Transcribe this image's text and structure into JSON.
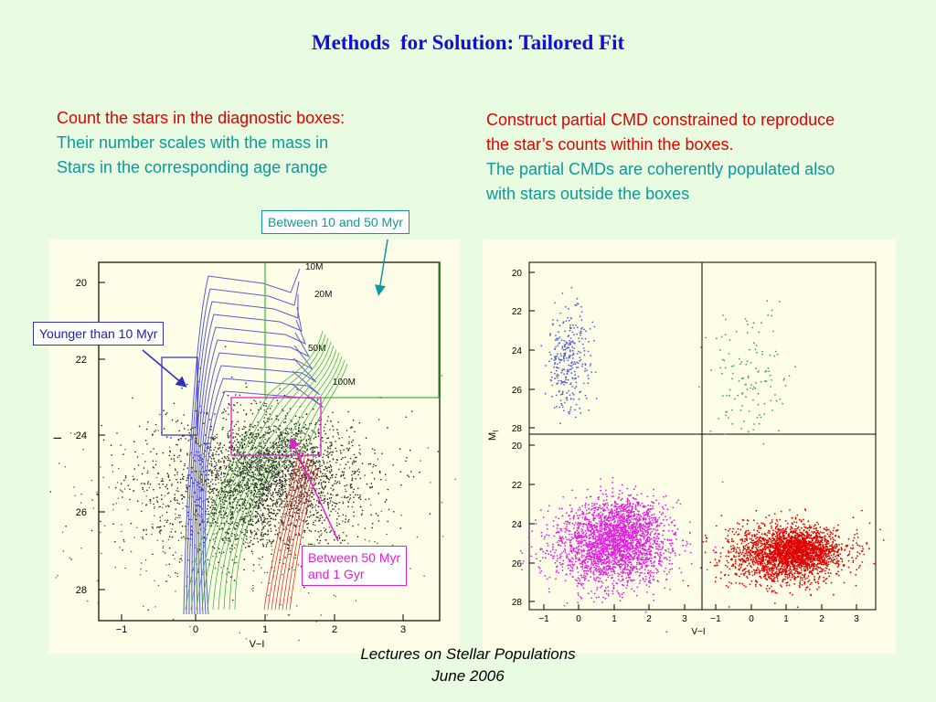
{
  "slide": {
    "title": "Methods  for Solution: Tailored Fit",
    "left_text": {
      "line1": "Count the stars in the diagnostic boxes:",
      "line2": "Their number scales with the mass in",
      "line3": "Stars in the corresponding age range"
    },
    "right_text": {
      "line1": "Construct partial CMD constrained to reproduce",
      "line2": "the star’s counts within the boxes.",
      "line3": "The partial CMDs are coherently populated also",
      "line4": "with stars outside the boxes"
    },
    "callouts": {
      "mid_age": "Between 10 and 50 Myr",
      "young": "Younger than 10 Myr",
      "old_line1": "Between 50 Myr",
      "old_line2": "and 1 Gyr"
    },
    "footer": {
      "line1": "Lectures on Stellar Populations",
      "line2": "June 2006"
    }
  },
  "left_plot": {
    "xlabel": "V−I",
    "ylabel": "I",
    "xticks": [
      "−1",
      "0",
      "1",
      "2",
      "3"
    ],
    "yticks": [
      "20",
      "22",
      "24",
      "26",
      "28"
    ],
    "mass_labels": [
      "10M",
      "20M",
      "50M",
      "100M"
    ],
    "colors": {
      "isochrone": "#5a5ad8",
      "green": "#38b838",
      "red": "#e03030",
      "box_blue": "#3030c0",
      "box_magenta": "#e020d0"
    }
  },
  "right_plot": {
    "xlabel": "V−I",
    "ylabel": "M",
    "ylabel_sub": "I",
    "xticks": [
      "−1",
      "0",
      "1",
      "2",
      "3"
    ],
    "yticks": [
      "20",
      "22",
      "24",
      "26",
      "28"
    ],
    "colors": {
      "young": "#5060d0",
      "mid": "#40a060",
      "old": "#e020e0",
      "oldest": "#e00000"
    }
  }
}
